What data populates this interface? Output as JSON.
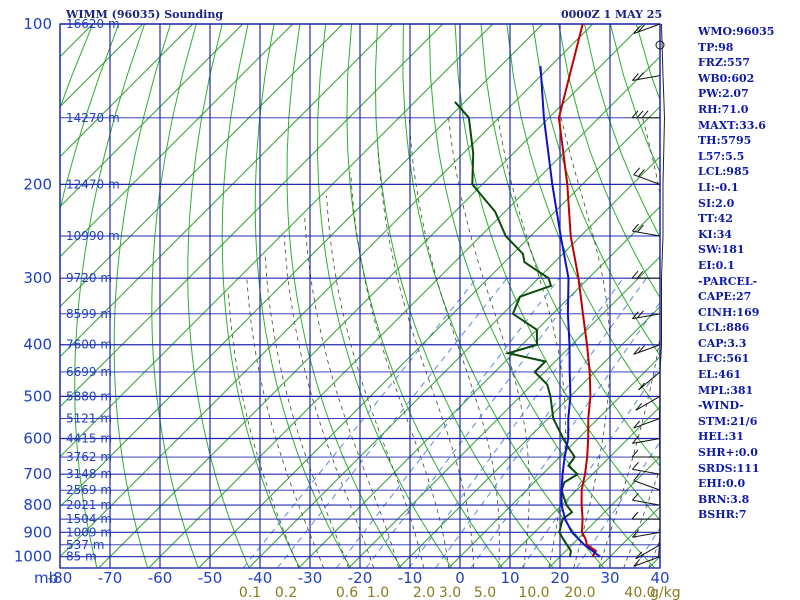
{
  "header": {
    "station": "WIMM (96035) Sounding",
    "time": "0000Z  1 MAY 25"
  },
  "panel": [
    "WMO:96035",
    "TP:98",
    "FRZ:557",
    "WB0:602",
    "PW:2.07",
    "RH:71.0",
    "MAXT:33.6",
    "TH:5795",
    "L57:5.5",
    "LCL:985",
    "LI:-0.1",
    "SI:2.0",
    "TT:42",
    "KI:34",
    "SW:181",
    "EI:0.1",
    "-PARCEL-",
    "CAPE:27",
    "CINH:169",
    "LCL:886",
    "CAP:3.3",
    "LFC:561",
    "EL:461",
    "MPL:381",
    "-WIND-",
    "STM:21/6",
    "HEL:31",
    "SHR+:0.0",
    "SRDS:111",
    "EHI:0.0",
    "BRN:3.8",
    "BSHR:7"
  ],
  "chart_data": {
    "type": "skew-t",
    "xlabel": "mb",
    "pressure_levels": [
      100,
      200,
      300,
      400,
      500,
      600,
      700,
      800,
      900,
      1000
    ],
    "height_labels": [
      {
        "p": 100,
        "label": "16620 m"
      },
      {
        "p": 150,
        "label": "14270 m"
      },
      {
        "p": 200,
        "label": "12470 m"
      },
      {
        "p": 250,
        "label": "10990 m"
      },
      {
        "p": 300,
        "label": "9720 m"
      },
      {
        "p": 350,
        "label": "8599 m"
      },
      {
        "p": 400,
        "label": "7600 m"
      },
      {
        "p": 450,
        "label": "6699 m"
      },
      {
        "p": 500,
        "label": "5880 m"
      },
      {
        "p": 550,
        "label": "5121 m"
      },
      {
        "p": 600,
        "label": "4415 m"
      },
      {
        "p": 650,
        "label": "3762 m"
      },
      {
        "p": 700,
        "label": "3148 m"
      },
      {
        "p": 750,
        "label": "2569 m"
      },
      {
        "p": 800,
        "label": "2021 m"
      },
      {
        "p": 850,
        "label": "1504 m"
      },
      {
        "p": 900,
        "label": "1009 m"
      },
      {
        "p": 950,
        "label": "537 m"
      },
      {
        "p": 1000,
        "label": "85 m"
      }
    ],
    "temp_ticks": [
      -80,
      -70,
      -60,
      -50,
      -40,
      -30,
      -20,
      -10,
      0,
      10,
      20,
      30,
      40
    ],
    "mixing_ratio_labels": [
      "0.1",
      "0.2",
      "0.6",
      "1.0",
      "2.0",
      "3.0",
      "5.0",
      "10.0",
      "20.0",
      "40.0"
    ],
    "mixing_ratio_unit": "g/kg",
    "series": [
      {
        "name": "Temperature",
        "color": "#c00000",
        "points": [
          [
            1000,
            26.5
          ],
          [
            975,
            26
          ],
          [
            950,
            23
          ],
          [
            925,
            21.5
          ],
          [
            900,
            19.5
          ],
          [
            850,
            17
          ],
          [
            800,
            14
          ],
          [
            750,
            11
          ],
          [
            700,
            8.5
          ],
          [
            650,
            5.5
          ],
          [
            600,
            2
          ],
          [
            550,
            -2
          ],
          [
            500,
            -6
          ],
          [
            450,
            -11
          ],
          [
            400,
            -17
          ],
          [
            350,
            -24
          ],
          [
            300,
            -32
          ],
          [
            250,
            -42
          ],
          [
            200,
            -53
          ],
          [
            150,
            -68
          ],
          [
            100,
            -82
          ]
        ]
      },
      {
        "name": "Dewpoint",
        "color": "#0a4a0a",
        "points": [
          [
            1000,
            22
          ],
          [
            975,
            21
          ],
          [
            950,
            19
          ],
          [
            925,
            17
          ],
          [
            900,
            15
          ],
          [
            875,
            14
          ],
          [
            850,
            13
          ],
          [
            825,
            13.5
          ],
          [
            800,
            11
          ],
          [
            775,
            9
          ],
          [
            750,
            7
          ],
          [
            725,
            6
          ],
          [
            700,
            7
          ],
          [
            675,
            3.5
          ],
          [
            650,
            3
          ],
          [
            625,
            0
          ],
          [
            600,
            -3
          ],
          [
            550,
            -9
          ],
          [
            500,
            -14
          ],
          [
            475,
            -17
          ],
          [
            450,
            -22
          ],
          [
            430,
            -22
          ],
          [
            415,
            -31
          ],
          [
            400,
            -27
          ],
          [
            375,
            -30
          ],
          [
            350,
            -38
          ],
          [
            325,
            -40
          ],
          [
            310,
            -36
          ],
          [
            300,
            -38
          ],
          [
            280,
            -46
          ],
          [
            270,
            -48
          ],
          [
            250,
            -55
          ],
          [
            225,
            -62
          ],
          [
            200,
            -72
          ],
          [
            175,
            -78
          ],
          [
            150,
            -86
          ],
          [
            140,
            -92
          ]
        ]
      },
      {
        "name": "Parcel",
        "color": "#1010c8",
        "points": [
          [
            1000,
            28
          ],
          [
            950,
            22.5
          ],
          [
            900,
            17.5
          ],
          [
            850,
            13.5
          ],
          [
            800,
            10
          ],
          [
            750,
            7
          ],
          [
            700,
            4
          ],
          [
            650,
            1
          ],
          [
            600,
            -2
          ],
          [
            550,
            -6
          ],
          [
            500,
            -10
          ],
          [
            450,
            -15
          ],
          [
            400,
            -20.5
          ],
          [
            350,
            -27
          ],
          [
            300,
            -34
          ],
          [
            250,
            -44
          ],
          [
            200,
            -56
          ],
          [
            150,
            -71
          ],
          [
            120,
            -82
          ]
        ]
      }
    ],
    "wind_barbs": [
      {
        "p": 1000,
        "dir": 110,
        "spd": 5
      },
      {
        "p": 950,
        "dir": 120,
        "spd": 8
      },
      {
        "p": 900,
        "dir": 100,
        "spd": 10
      },
      {
        "p": 850,
        "dir": 90,
        "spd": 10
      },
      {
        "p": 800,
        "dir": 80,
        "spd": 10
      },
      {
        "p": 750,
        "dir": 70,
        "spd": 8
      },
      {
        "p": 700,
        "dir": 80,
        "spd": 10
      },
      {
        "p": 650,
        "dir": 90,
        "spd": 10
      },
      {
        "p": 600,
        "dir": 100,
        "spd": 8
      },
      {
        "p": 550,
        "dir": 110,
        "spd": 8
      },
      {
        "p": 500,
        "dir": 120,
        "spd": 10
      },
      {
        "p": 450,
        "dir": 130,
        "spd": 10
      },
      {
        "p": 400,
        "dir": 110,
        "spd": 15
      },
      {
        "p": 350,
        "dir": 100,
        "spd": 15
      },
      {
        "p": 300,
        "dir": 90,
        "spd": 15
      },
      {
        "p": 250,
        "dir": 80,
        "spd": 20
      },
      {
        "p": 200,
        "dir": 70,
        "spd": 20
      },
      {
        "p": 150,
        "dir": 90,
        "spd": 25
      },
      {
        "p": 125,
        "dir": 100,
        "spd": 20
      },
      {
        "p": 100,
        "dir": 110,
        "spd": 15
      }
    ]
  }
}
